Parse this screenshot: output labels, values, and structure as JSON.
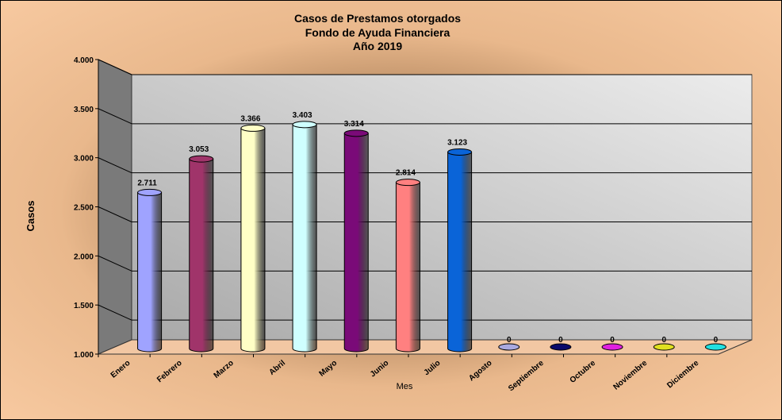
{
  "chart_data": {
    "type": "bar",
    "title": [
      "Casos de Prestamos otorgados",
      "Fondo de Ayuda  Financiera",
      "Año  2019"
    ],
    "xlabel": "Mes",
    "ylabel": "Casos",
    "ylim": [
      1000,
      4000
    ],
    "ytick_values": [
      1000,
      1500,
      2000,
      2500,
      3000,
      3500,
      4000
    ],
    "ytick_labels": [
      "1.000",
      "1.500",
      "2.000",
      "2.500",
      "3.000",
      "3.500",
      "4.000"
    ],
    "grid": true,
    "categories": [
      "Enero",
      "Febrero",
      "Marzo",
      "Abril",
      "Mayo",
      "Junio",
      "Julio",
      "Agosto",
      "Septiembre",
      "Octubre",
      "Noviembre",
      "Diciembre"
    ],
    "values": [
      2711,
      3053,
      3366,
      3403,
      3314,
      2814,
      3123,
      0,
      0,
      0,
      0,
      0
    ],
    "value_labels": [
      "2.711",
      "3.053",
      "3.366",
      "3.403",
      "3.314",
      "2.814",
      "3.123",
      "0",
      "0",
      "0",
      "0",
      "0"
    ],
    "colors": [
      "#9fa3ff",
      "#a0346a",
      "#ffffc6",
      "#cfffff",
      "#7a0a78",
      "#ff8080",
      "#0a64d8",
      "#a9a9e0",
      "#0a0a6a",
      "#e020e0",
      "#e0e020",
      "#20e0e0"
    ]
  }
}
